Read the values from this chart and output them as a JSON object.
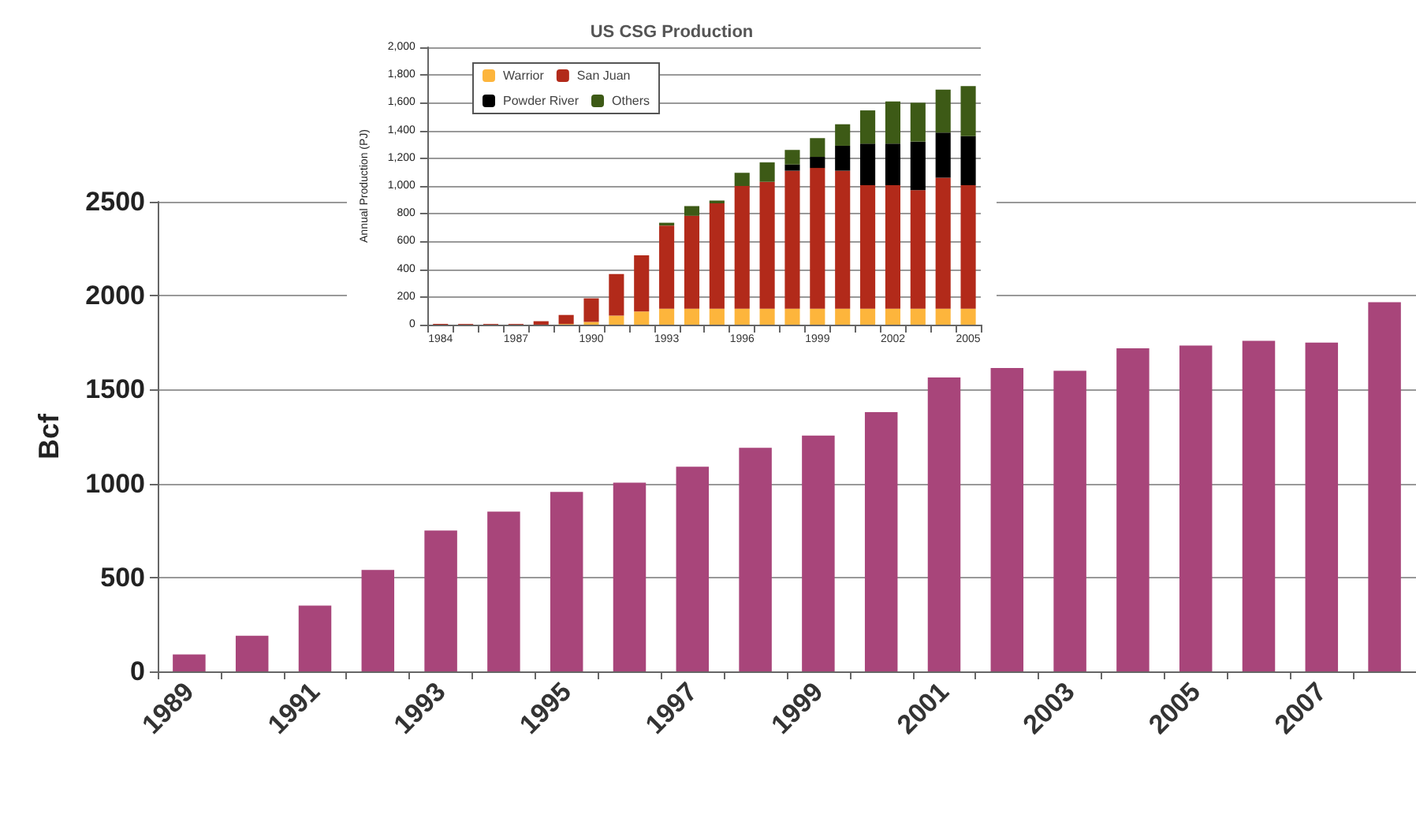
{
  "chart_data": [
    {
      "type": "bar",
      "title": "US CSG Production",
      "ylabel": "Annual Production (PJ)",
      "stacked": true,
      "legend": "top left",
      "grid": "y",
      "categories": [
        "1984",
        null,
        null,
        "1987",
        null,
        null,
        "1990",
        null,
        null,
        "1993",
        null,
        null,
        "1996",
        null,
        null,
        "1999",
        null,
        null,
        "2002",
        null,
        null,
        "2005"
      ],
      "ylim": [
        0,
        2000
      ],
      "yticks": [
        {
          "value": 0,
          "label": "0"
        },
        {
          "value": 200,
          "label": "200"
        },
        {
          "value": 400,
          "label": "400"
        },
        {
          "value": 600,
          "label": "600"
        },
        {
          "value": 800,
          "label": "800"
        },
        {
          "value": 1000,
          "label": "1,000"
        },
        {
          "value": 1200,
          "label": "1,200"
        },
        {
          "value": 1400,
          "label": "1,400"
        },
        {
          "value": 1600,
          "label": "1,600"
        },
        {
          "value": 1800,
          "label": "1,800"
        },
        {
          "value": 2000,
          "label": "2,000"
        }
      ],
      "series": [
        {
          "name": "Warrior",
          "color": "#fdb53c",
          "values": [
            0,
            0,
            0,
            0,
            0,
            5,
            20,
            65,
            95,
            115,
            115,
            115,
            115,
            115,
            115,
            115,
            115,
            115,
            115,
            115,
            115,
            115
          ]
        },
        {
          "name": "San Juan",
          "color": "#b22a1a",
          "values": [
            5,
            5,
            5,
            5,
            25,
            65,
            170,
            300,
            405,
            600,
            670,
            760,
            885,
            915,
            995,
            1015,
            995,
            890,
            890,
            855,
            945,
            890
          ]
        },
        {
          "name": "Powder River",
          "color": "#000000",
          "values": [
            0,
            0,
            0,
            0,
            0,
            0,
            0,
            0,
            0,
            0,
            0,
            0,
            0,
            0,
            45,
            80,
            180,
            300,
            300,
            350,
            325,
            355
          ]
        },
        {
          "name": "Others",
          "color": "#3d5a16",
          "values": [
            0,
            0,
            0,
            0,
            0,
            0,
            0,
            0,
            0,
            20,
            70,
            20,
            95,
            140,
            105,
            135,
            155,
            240,
            305,
            280,
            310,
            360
          ]
        }
      ]
    },
    {
      "type": "bar",
      "ylabel": "Bcf",
      "grid": "y",
      "categories": [
        "1989",
        null,
        "1991",
        null,
        "1993",
        null,
        "1995",
        null,
        "1997",
        null,
        "1999",
        null,
        "2001",
        null,
        "2003",
        null,
        "2005",
        null,
        "2007",
        null
      ],
      "ylim": [
        0,
        2500
      ],
      "yticks": [
        0,
        500,
        1000,
        1500,
        2000,
        2500
      ],
      "series": [
        {
          "color": "#a8457a",
          "values": [
            90,
            190,
            350,
            540,
            750,
            850,
            955,
            1005,
            1090,
            1190,
            1255,
            1380,
            1565,
            1615,
            1600,
            1720,
            1735,
            1760,
            1750,
            1965
          ]
        }
      ]
    }
  ]
}
